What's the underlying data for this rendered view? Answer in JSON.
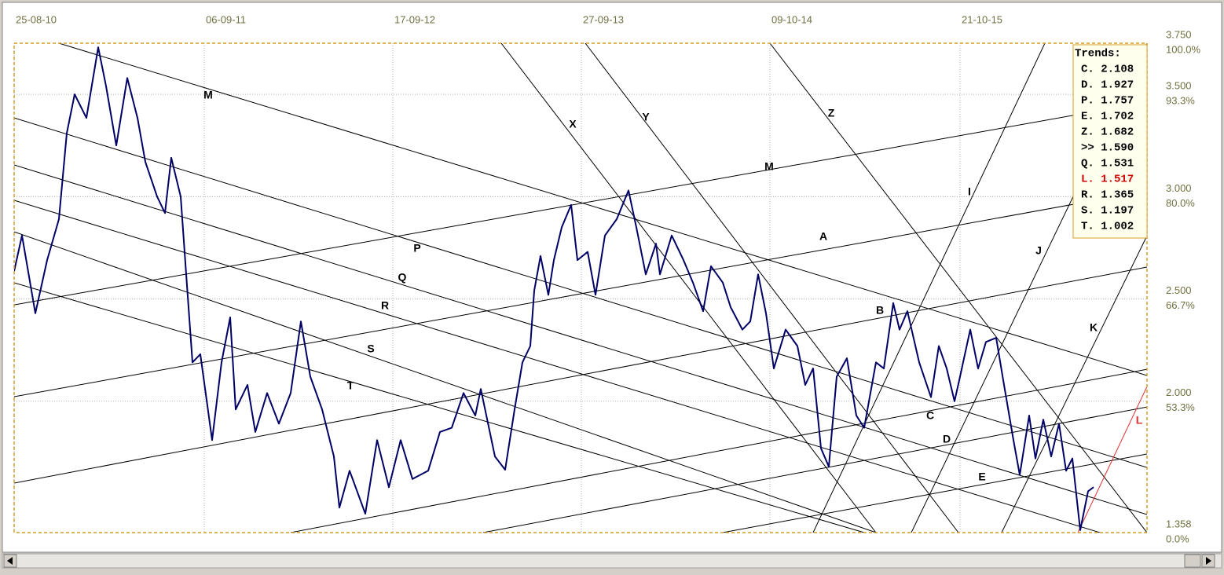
{
  "chart_data": {
    "type": "line",
    "xlim": [
      0,
      1442
    ],
    "xticks": [
      {
        "value": 0,
        "label": "25-08-10"
      },
      {
        "value": 242,
        "label": "06-09-11"
      },
      {
        "value": 482,
        "label": "17-09-12"
      },
      {
        "value": 722,
        "label": "27-09-13"
      },
      {
        "value": 962,
        "label": "09-10-14"
      },
      {
        "value": 1204,
        "label": "21-10-15"
      }
    ],
    "ylim": [
      1.358,
      3.75
    ],
    "yticks": [
      {
        "value": 3.75,
        "label": "3.750",
        "pct": "100.0%"
      },
      {
        "value": 3.5,
        "label": "3.500",
        "pct": "93.3%"
      },
      {
        "value": 3.0,
        "label": "3.000",
        "pct": "80.0%"
      },
      {
        "value": 2.5,
        "label": "2.500",
        "pct": "66.7%"
      },
      {
        "value": 2.0,
        "label": "2.000",
        "pct": "53.3%"
      },
      {
        "value": 1.358,
        "label": "1.358",
        "pct": "0.0%"
      }
    ],
    "grid": true,
    "series": [
      {
        "color": "#000066",
        "x": [
          0,
          10,
          27,
          42,
          57,
          67,
          77,
          92,
          107,
          117,
          130,
          144,
          157,
          167,
          182,
          192,
          200,
          212,
          219,
          227,
          237,
          252,
          264,
          275,
          282,
          297,
          307,
          322,
          337,
          352,
          365,
          377,
          392,
          407,
          414,
          427,
          447,
          462,
          477,
          492,
          507,
          527,
          542,
          557,
          572,
          587,
          594,
          612,
          625,
          637,
          647,
          657,
          662,
          670,
          680,
          687,
          697,
          709,
          717,
          730,
          740,
          752,
          767,
          782,
          792,
          804,
          817,
          822,
          837,
          852,
          864,
          877,
          887,
          902,
          912,
          927,
          937,
          947,
          957,
          967,
          982,
          997,
          1007,
          1017,
          1027,
          1037,
          1047,
          1060,
          1072,
          1082,
          1097,
          1107,
          1119,
          1127,
          1137,
          1152,
          1167,
          1177,
          1187,
          1197,
          1204,
          1217,
          1227,
          1237,
          1250,
          1260,
          1272,
          1280,
          1292,
          1300,
          1310,
          1320,
          1330,
          1339,
          1347,
          1357,
          1367,
          1374
        ],
        "values": [
          2.636,
          2.81,
          2.43,
          2.69,
          2.89,
          3.31,
          3.5,
          3.385,
          3.73,
          3.54,
          3.25,
          3.58,
          3.385,
          3.17,
          3.0,
          2.92,
          3.19,
          3.0,
          2.62,
          2.19,
          2.23,
          1.81,
          2.19,
          2.41,
          1.96,
          2.08,
          1.85,
          2.04,
          1.89,
          2.04,
          2.39,
          2.12,
          1.96,
          1.73,
          1.48,
          1.66,
          1.45,
          1.81,
          1.58,
          1.81,
          1.62,
          1.66,
          1.85,
          1.87,
          2.04,
          1.93,
          2.06,
          1.73,
          1.665,
          1.96,
          2.19,
          2.27,
          2.54,
          2.71,
          2.52,
          2.69,
          2.85,
          2.96,
          2.69,
          2.73,
          2.52,
          2.81,
          2.89,
          3.03,
          2.85,
          2.62,
          2.77,
          2.62,
          2.81,
          2.69,
          2.58,
          2.44,
          2.66,
          2.58,
          2.46,
          2.35,
          2.39,
          2.62,
          2.43,
          2.16,
          2.35,
          2.27,
          2.08,
          2.16,
          1.77,
          1.68,
          2.12,
          2.21,
          1.93,
          1.87,
          2.19,
          2.16,
          2.48,
          2.35,
          2.44,
          2.19,
          2.02,
          2.27,
          2.16,
          2.0,
          2.12,
          2.35,
          2.16,
          2.29,
          2.31,
          2.08,
          1.81,
          1.64,
          1.93,
          1.72,
          1.91,
          1.73,
          1.89,
          1.66,
          1.72,
          1.37,
          1.56,
          1.58
        ]
      }
    ],
    "trendlines": [
      {
        "label": "M",
        "x": [
          57,
          1442
        ],
        "y": [
          3.75,
          2.126
        ],
        "color": "#000000"
      },
      {
        "label": "P",
        "x": [
          0,
          1442
        ],
        "y": [
          3.385,
          1.676
        ],
        "color": "#000000"
      },
      {
        "label": "Q",
        "x": [
          0,
          1442
        ],
        "y": [
          3.155,
          1.446
        ],
        "color": "#000000"
      },
      {
        "label": "R",
        "x": [
          0,
          1382
        ],
        "y": [
          2.982,
          1.358
        ],
        "color": "#000000"
      },
      {
        "label": "S",
        "x": [
          0,
          1097
        ],
        "y": [
          2.828,
          1.358
        ],
        "color": "#000000"
      },
      {
        "label": "T",
        "x": [
          0,
          1082
        ],
        "y": [
          2.579,
          1.358
        ],
        "color": "#000000"
      },
      {
        "label": "M",
        "x": [
          0,
          1442
        ],
        "y": [
          2.471,
          3.462
        ],
        "color": "#000000"
      },
      {
        "label": "A",
        "x": [
          0,
          1442
        ],
        "y": [
          2.022,
          3.028
        ],
        "color": "#000000"
      },
      {
        "label": "B",
        "x": [
          0,
          1442
        ],
        "y": [
          1.6,
          2.656
        ],
        "color": "#000000"
      },
      {
        "label": "C",
        "x": [
          352,
          1442
        ],
        "y": [
          1.358,
          2.156
        ],
        "color": "#000000"
      },
      {
        "label": "D",
        "x": [
          597,
          1442
        ],
        "y": [
          1.358,
          1.972
        ],
        "color": "#000000"
      },
      {
        "label": "E",
        "x": [
          902,
          1442
        ],
        "y": [
          1.358,
          1.742
        ],
        "color": "#000000"
      },
      {
        "label": "X",
        "x": [
          620,
          1097
        ],
        "y": [
          3.75,
          1.358
        ],
        "color": "#000000"
      },
      {
        "label": "Y",
        "x": [
          727,
          1202
        ],
        "y": [
          3.75,
          1.358
        ],
        "color": "#000000"
      },
      {
        "label": "Z",
        "x": [
          962,
          1442
        ],
        "y": [
          3.75,
          1.358
        ],
        "color": "#000000"
      },
      {
        "label": "I",
        "x": [
          1017,
          1312
        ],
        "y": [
          1.358,
          3.75
        ],
        "color": "#000000"
      },
      {
        "label": "J",
        "x": [
          1142,
          1442
        ],
        "y": [
          1.358,
          3.75
        ],
        "color": "#000000"
      },
      {
        "label": "K",
        "x": [
          1257,
          1442
        ],
        "y": [
          1.358,
          2.809
        ],
        "color": "#000000"
      },
      {
        "label": "L",
        "x": [
          1354,
          1442
        ],
        "y": [
          1.358,
          2.072
        ],
        "color": "#e03030"
      }
    ],
    "legend": {
      "title": "Trends:",
      "items": [
        {
          "text": "C. 2.108",
          "color": "#000000"
        },
        {
          "text": "D. 1.927",
          "color": "#000000"
        },
        {
          "text": "P. 1.757",
          "color": "#000000"
        },
        {
          "text": "E. 1.702",
          "color": "#000000"
        },
        {
          "text": "Z. 1.682",
          "color": "#000000"
        },
        {
          "text": ">> 1.590",
          "color": "#000000"
        },
        {
          "text": "Q. 1.531",
          "color": "#000000"
        },
        {
          "text": "L. 1.517",
          "color": "#d00000"
        },
        {
          "text": "R. 1.365",
          "color": "#000000"
        },
        {
          "text": "S. 1.197",
          "color": "#000000"
        },
        {
          "text": "T. 1.002",
          "color": "#000000"
        }
      ]
    }
  }
}
